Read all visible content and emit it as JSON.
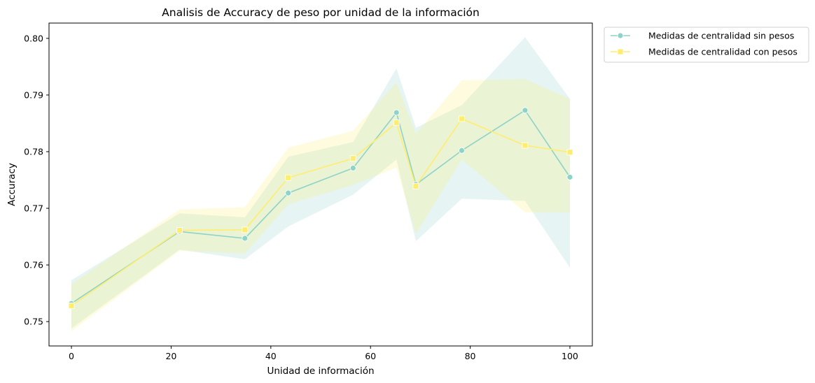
{
  "chart_data": {
    "type": "line",
    "title": "Analisis de Accuracy de peso por unidad de la información",
    "xlabel": "Unidad de información",
    "ylabel": "Accuracy",
    "xlim": [
      -4.5,
      104.5
    ],
    "ylim": [
      0.7457,
      0.8027
    ],
    "xticks": [
      0,
      20,
      40,
      60,
      80,
      100
    ],
    "yticks": [
      0.75,
      0.76,
      0.77,
      0.78,
      0.79,
      0.8
    ],
    "xtick_labels": [
      "0",
      "20",
      "40",
      "60",
      "80",
      "100"
    ],
    "ytick_labels": [
      "0.75",
      "0.76",
      "0.77",
      "0.78",
      "0.79",
      "0.80"
    ],
    "grid": false,
    "legend_position": "outside-top-right",
    "series": [
      {
        "name": "Medidas de centralidad sin pesos",
        "color": "#8dd3c7",
        "marker": "circle",
        "x": [
          0,
          21.7,
          34.8,
          43.5,
          56.5,
          65.2,
          69.1,
          78.3,
          91.0,
          100
        ],
        "y": [
          0.7532,
          0.7659,
          0.7647,
          0.7727,
          0.7771,
          0.7869,
          0.7742,
          0.7802,
          0.7873,
          0.7755
        ],
        "ci_upper": [
          0.7573,
          0.7691,
          0.7684,
          0.7791,
          0.7817,
          0.7947,
          0.7842,
          0.7882,
          0.8002,
          0.7893
        ],
        "ci_lower": [
          0.7488,
          0.7627,
          0.761,
          0.7668,
          0.7724,
          0.7786,
          0.7642,
          0.7717,
          0.7713,
          0.7595
        ]
      },
      {
        "name": "Medidas de centralidad con pesos",
        "color": "#ffed6f",
        "marker": "square",
        "x": [
          0,
          21.7,
          34.8,
          43.5,
          56.5,
          65.2,
          69.1,
          78.3,
          91.0,
          100
        ],
        "y": [
          0.7528,
          0.7661,
          0.7662,
          0.7754,
          0.7788,
          0.7851,
          0.7739,
          0.7858,
          0.7811,
          0.7799
        ],
        "ci_upper": [
          0.7566,
          0.7698,
          0.7702,
          0.7807,
          0.7837,
          0.7922,
          0.7832,
          0.7926,
          0.7928,
          0.7893
        ],
        "ci_lower": [
          0.7483,
          0.7625,
          0.762,
          0.7707,
          0.7741,
          0.7772,
          0.7655,
          0.7786,
          0.7693,
          0.7693
        ]
      }
    ]
  }
}
